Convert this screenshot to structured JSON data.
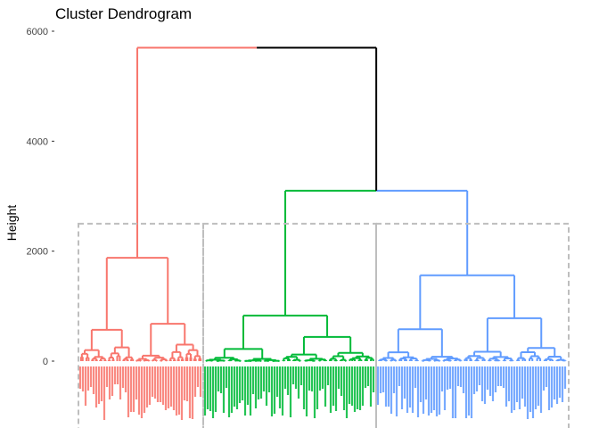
{
  "chart_data": {
    "type": "dendrogram",
    "title": "Cluster Dendrogram",
    "xlabel": "",
    "ylabel": "Height",
    "ylim": [
      -700,
      6000
    ],
    "yticks": [
      0,
      2000,
      4000,
      6000
    ],
    "ytick_labels": [
      "0",
      "2000",
      "4000",
      "6000"
    ],
    "grid": false,
    "colors": {
      "root": "#000000",
      "cluster_1": "#F8766D",
      "cluster_2": "#00BA38",
      "cluster_3": "#619CFF",
      "rect": "#BEBEBE"
    },
    "cut_height": 2500,
    "root_height": 5700,
    "clusters": [
      {
        "name": "cluster_1",
        "merge_height": 1880,
        "sub_merges": [
          {
            "height": 570,
            "children": [
              {
                "height": 200
              },
              {
                "height": 250
              }
            ]
          },
          {
            "height": 680,
            "children": [
              {
                "height": 100
              },
              {
                "height": 300
              }
            ]
          }
        ]
      },
      {
        "name": "cluster_2",
        "merge_height": 830,
        "sub_merges": [
          {
            "height": 220,
            "children": [
              {
                "height": 60
              },
              {
                "height": 40
              }
            ]
          },
          {
            "height": 440,
            "children": [
              {
                "height": 120
              },
              {
                "height": 150
              }
            ]
          }
        ]
      },
      {
        "name": "cluster_3",
        "merge_height": 1560,
        "sub_merges": [
          {
            "height": 580,
            "children": [
              {
                "height": 160
              },
              {
                "height": 80
              }
            ]
          },
          {
            "height": 780,
            "children": [
              {
                "height": 170
              },
              {
                "height": 240
              }
            ]
          }
        ]
      }
    ],
    "c2_c3_merge_height": 3100
  }
}
